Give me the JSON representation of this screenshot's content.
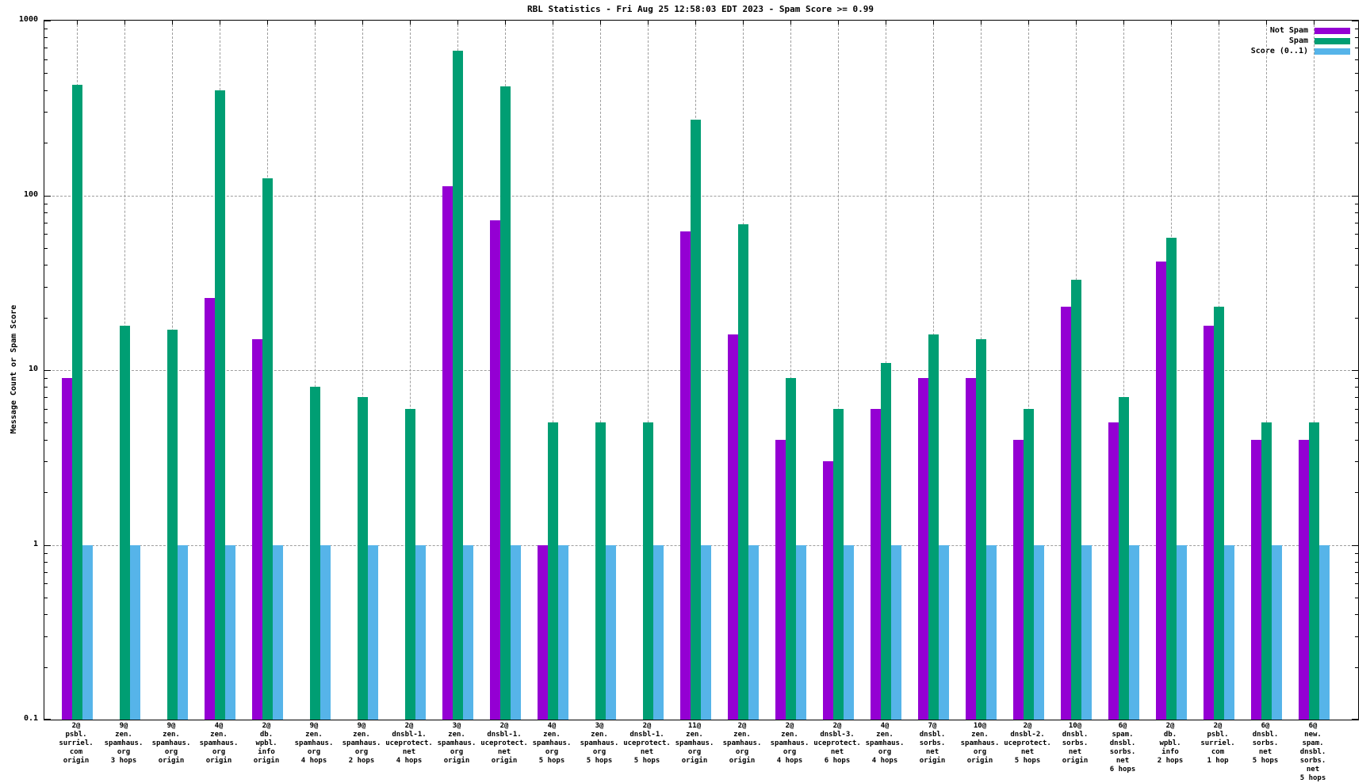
{
  "chart_data": {
    "type": "bar",
    "title": "RBL Statistics - Fri Aug 25 12:58:03 EDT 2023 - Spam Score >= 0.99",
    "ylabel": "Message Count or Spam Score",
    "xlabel": "",
    "y_scale": "log",
    "ylim": [
      0.1,
      1000
    ],
    "y_tick_labels": [
      "1000",
      "100",
      "10",
      "1",
      "0.1"
    ],
    "grid": true,
    "legend_position": "top-right",
    "grid_color": "#9e9e9e",
    "categories": [
      [
        "2@",
        "psbl.",
        "surriel.",
        "com",
        "origin"
      ],
      [
        "9@",
        "zen.",
        "spamhaus.",
        "org",
        "3 hops"
      ],
      [
        "9@",
        "zen.",
        "spamhaus.",
        "org",
        "origin"
      ],
      [
        "4@",
        "zen.",
        "spamhaus.",
        "org",
        "origin"
      ],
      [
        "2@",
        "db.",
        "wpbl.",
        "info",
        "origin"
      ],
      [
        "9@",
        "zen.",
        "spamhaus.",
        "org",
        "4 hops"
      ],
      [
        "9@",
        "zen.",
        "spamhaus.",
        "org",
        "2 hops"
      ],
      [
        "2@",
        "dnsbl-1.",
        "uceprotect.",
        "net",
        "4 hops"
      ],
      [
        "3@",
        "zen.",
        "spamhaus.",
        "org",
        "origin"
      ],
      [
        "2@",
        "dnsbl-1.",
        "uceprotect.",
        "net",
        "origin"
      ],
      [
        "4@",
        "zen.",
        "spamhaus.",
        "org",
        "5 hops"
      ],
      [
        "3@",
        "zen.",
        "spamhaus.",
        "org",
        "5 hops"
      ],
      [
        "2@",
        "dnsbl-1.",
        "uceprotect.",
        "net",
        "5 hops"
      ],
      [
        "11@",
        "zen.",
        "spamhaus.",
        "org",
        "origin"
      ],
      [
        "2@",
        "zen.",
        "spamhaus.",
        "org",
        "origin"
      ],
      [
        "2@",
        "zen.",
        "spamhaus.",
        "org",
        "4 hops"
      ],
      [
        "2@",
        "dnsbl-3.",
        "uceprotect.",
        "net",
        "6 hops"
      ],
      [
        "4@",
        "zen.",
        "spamhaus.",
        "org",
        "4 hops"
      ],
      [
        "7@",
        "dnsbl.",
        "sorbs.",
        "net",
        "origin"
      ],
      [
        "10@",
        "zen.",
        "spamhaus.",
        "org",
        "origin"
      ],
      [
        "2@",
        "dnsbl-2.",
        "uceprotect.",
        "net",
        "5 hops"
      ],
      [
        "10@",
        "dnsbl.",
        "sorbs.",
        "net",
        "origin"
      ],
      [
        "6@",
        "spam.",
        "dnsbl.",
        "sorbs.",
        "net",
        "6 hops"
      ],
      [
        "2@",
        "db.",
        "wpbl.",
        "info",
        "2 hops"
      ],
      [
        "2@",
        "psbl.",
        "surriel.",
        "com",
        "1 hop"
      ],
      [
        "6@",
        "dnsbl.",
        "sorbs.",
        "net",
        "5 hops"
      ],
      [
        "6@",
        "new.",
        "spam.",
        "dnsbl.",
        "sorbs.",
        "net",
        "5 hops"
      ]
    ],
    "series": [
      {
        "name": "Not Spam",
        "color": "#9400d3",
        "values": [
          9,
          0,
          0,
          26,
          15,
          0,
          0,
          0,
          113,
          72,
          1,
          0,
          0,
          62,
          16,
          4,
          3,
          6,
          9,
          9,
          4,
          23,
          5,
          42,
          18,
          4,
          4
        ]
      },
      {
        "name": "Spam",
        "color": "#009e73",
        "values": [
          430,
          18,
          17,
          400,
          125,
          8,
          7,
          6,
          670,
          420,
          5,
          5,
          5,
          270,
          68,
          9,
          6,
          11,
          16,
          15,
          6,
          33,
          7,
          57,
          23,
          5,
          5
        ]
      },
      {
        "name": "Score (0..1)",
        "color": "#56b4e9",
        "values": [
          0.99,
          0.99,
          0.99,
          0.99,
          0.99,
          0.99,
          0.99,
          0.99,
          0.99,
          0.99,
          0.99,
          0.99,
          0.99,
          0.99,
          0.99,
          0.99,
          0.99,
          0.99,
          0.99,
          0.99,
          0.99,
          0.99,
          0.99,
          0.99,
          0.99,
          0.99,
          0.99
        ]
      }
    ]
  }
}
